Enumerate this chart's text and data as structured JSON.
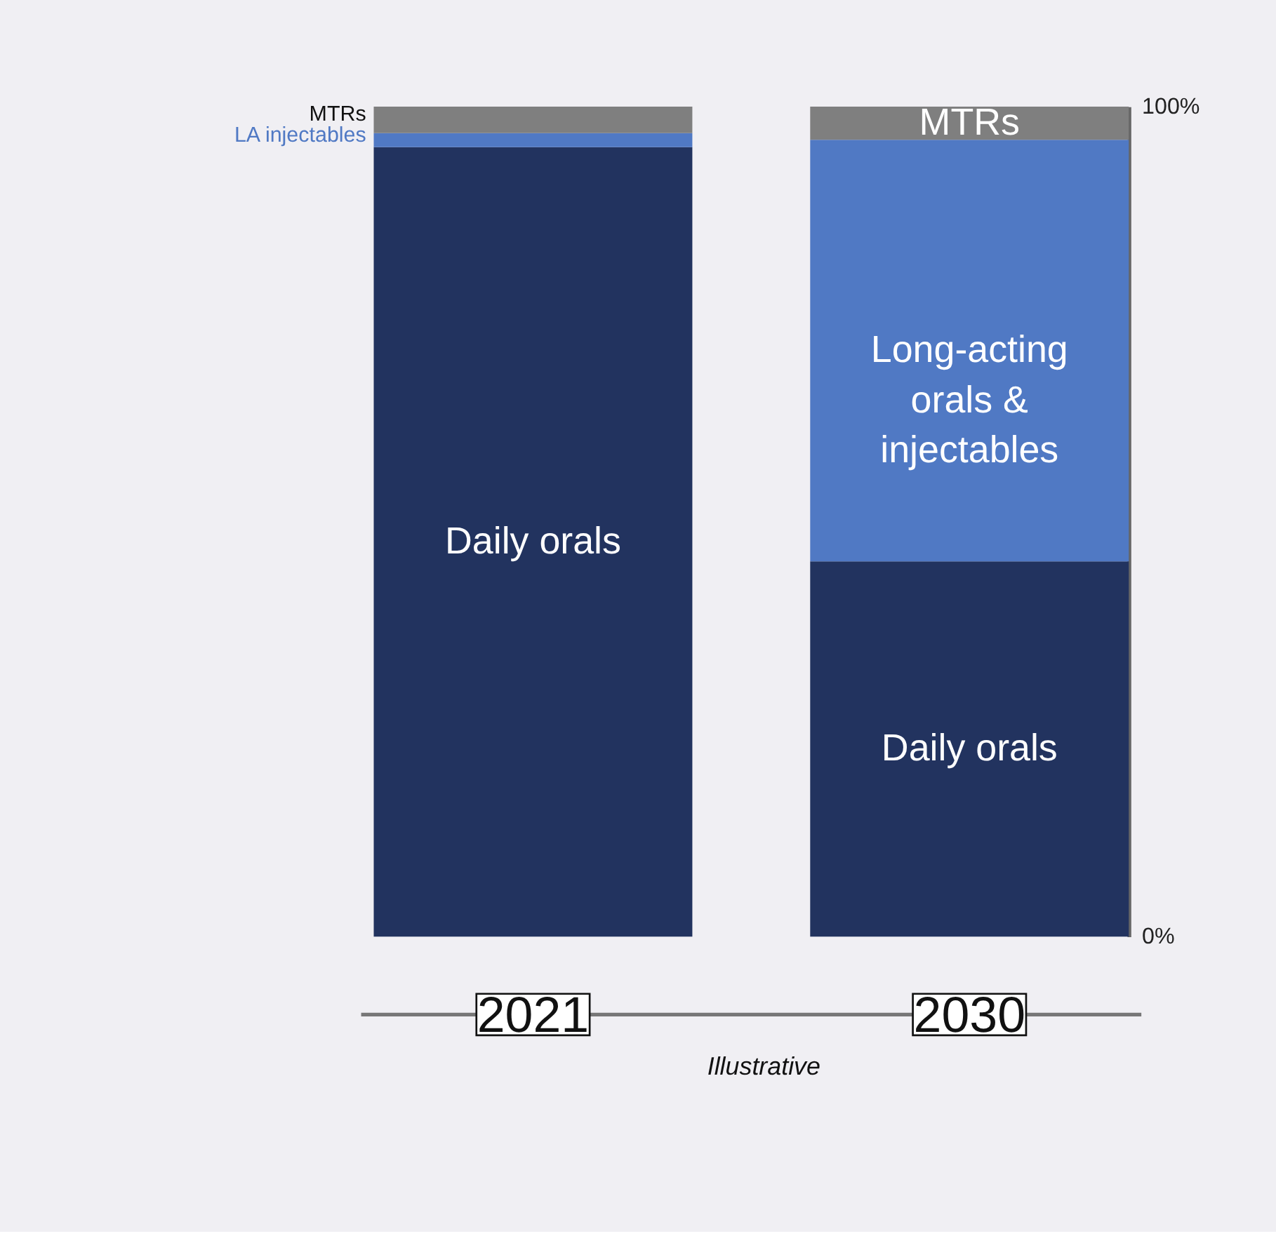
{
  "chart_data": {
    "type": "bar",
    "stacked": true,
    "categories": [
      "2021",
      "2030"
    ],
    "series": [
      {
        "name": "Daily orals",
        "color": "#22335f",
        "values": [
          95.1,
          45.2
        ]
      },
      {
        "name": "Long-acting orals & injectables",
        "color": "#5079c4",
        "values": [
          1.7,
          50.8
        ]
      },
      {
        "name": "MTRs",
        "color": "#7f7f7f",
        "values": [
          3.2,
          4.0
        ]
      }
    ],
    "ylim": [
      0,
      100
    ],
    "yticks": [
      {
        "value": 0,
        "label": "0%"
      },
      {
        "value": 100,
        "label": "100%"
      }
    ],
    "annotations": [
      "MTRs",
      "LA injectables",
      "Illustrative"
    ],
    "grid": false,
    "legend": false
  }
}
